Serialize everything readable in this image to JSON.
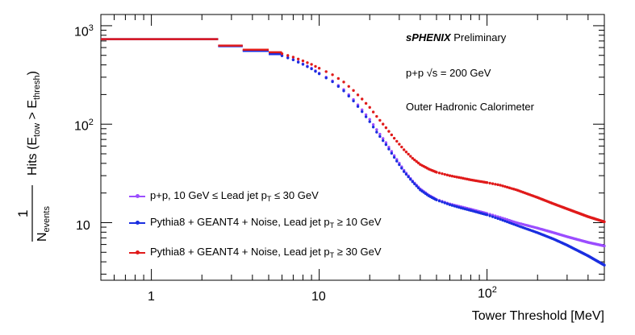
{
  "annotations": {
    "experiment_bold": "sPHENIX",
    "experiment_rest": "Preliminary",
    "system": "p+p  √s = 200 GeV",
    "detector": "Outer Hadronic Calorimeter"
  },
  "legend": [
    {
      "pre": "p+p, 10 GeV ≤ Lead jet p",
      "sub": "T",
      "post": " ≤ 30 GeV",
      "color": "#9b4dff"
    },
    {
      "pre": "Pythia8 + GEANT4 + Noise, Lead jet p",
      "sub": "T",
      "post": " ≥ 10 GeV",
      "color": "#1a2ee0"
    },
    {
      "pre": "Pythia8 + GEANT4 + Noise, Lead jet p",
      "sub": "T",
      "post": " ≥ 30 GeV",
      "color": "#e01a1a"
    }
  ],
  "chart_data": {
    "type": "scatter",
    "xlabel": "Tower Threshold [MeV]",
    "ylabel": "1/N_events Hits (E_tow > E_thresh)",
    "xscale": "log",
    "yscale": "log",
    "xlim": [
      0.5,
      500
    ],
    "ylim": [
      2.6,
      1300
    ],
    "x_tick_labels": [
      "1",
      "10",
      "10²"
    ],
    "y_tick_labels": [
      "10",
      "10²",
      "10³"
    ],
    "series": [
      {
        "name": "p+p, 10 GeV ≤ Lead jet pT ≤ 30 GeV",
        "color": "#9b4dff",
        "points": [
          [
            0.5,
            730
          ],
          [
            1,
            730
          ],
          [
            2,
            730
          ],
          [
            3,
            620
          ],
          [
            4,
            565
          ],
          [
            5,
            540
          ],
          [
            6,
            500
          ],
          [
            7,
            455
          ],
          [
            8,
            410
          ],
          [
            9,
            370
          ],
          [
            10,
            330
          ],
          [
            12,
            275
          ],
          [
            14,
            225
          ],
          [
            16,
            178
          ],
          [
            18,
            140
          ],
          [
            20,
            112
          ],
          [
            22,
            88
          ],
          [
            25,
            65
          ],
          [
            28,
            48
          ],
          [
            32,
            34
          ],
          [
            36,
            26.5
          ],
          [
            40,
            22
          ],
          [
            45,
            19
          ],
          [
            50,
            17.2
          ],
          [
            60,
            15.5
          ],
          [
            70,
            14.5
          ],
          [
            80,
            13.7
          ],
          [
            100,
            12.4
          ],
          [
            120,
            11.3
          ],
          [
            150,
            10
          ],
          [
            200,
            8.8
          ],
          [
            250,
            7.9
          ],
          [
            300,
            7.2
          ],
          [
            400,
            6.3
          ],
          [
            500,
            5.8
          ]
        ]
      },
      {
        "name": "Pythia8 + GEANT4 + Noise, Lead jet pT ≥ 10 GeV",
        "color": "#1a2ee0",
        "points": [
          [
            0.5,
            730
          ],
          [
            1,
            730
          ],
          [
            2,
            730
          ],
          [
            3,
            615
          ],
          [
            4,
            560
          ],
          [
            5,
            535
          ],
          [
            6,
            495
          ],
          [
            7,
            450
          ],
          [
            8,
            405
          ],
          [
            9,
            365
          ],
          [
            10,
            325
          ],
          [
            12,
            270
          ],
          [
            14,
            218
          ],
          [
            16,
            172
          ],
          [
            18,
            134
          ],
          [
            20,
            106
          ],
          [
            22,
            83
          ],
          [
            25,
            62
          ],
          [
            28,
            46
          ],
          [
            32,
            33
          ],
          [
            36,
            26
          ],
          [
            40,
            21.5
          ],
          [
            45,
            18.7
          ],
          [
            50,
            17
          ],
          [
            60,
            15.2
          ],
          [
            70,
            14.1
          ],
          [
            80,
            13.3
          ],
          [
            100,
            12
          ],
          [
            120,
            10.8
          ],
          [
            150,
            9.4
          ],
          [
            200,
            7.9
          ],
          [
            250,
            6.8
          ],
          [
            300,
            5.9
          ],
          [
            400,
            4.6
          ],
          [
            500,
            3.7
          ]
        ]
      },
      {
        "name": "Pythia8 + GEANT4 + Noise, Lead jet pT ≥ 30 GeV",
        "color": "#e01a1a",
        "points": [
          [
            0.5,
            730
          ],
          [
            1,
            730
          ],
          [
            2,
            730
          ],
          [
            3,
            625
          ],
          [
            4,
            575
          ],
          [
            5,
            555
          ],
          [
            6,
            520
          ],
          [
            7,
            480
          ],
          [
            8,
            440
          ],
          [
            9,
            405
          ],
          [
            10,
            370
          ],
          [
            12,
            318
          ],
          [
            14,
            268
          ],
          [
            16,
            220
          ],
          [
            18,
            180
          ],
          [
            20,
            148
          ],
          [
            22,
            120
          ],
          [
            25,
            92
          ],
          [
            28,
            72
          ],
          [
            32,
            55
          ],
          [
            36,
            45
          ],
          [
            40,
            39
          ],
          [
            45,
            35
          ],
          [
            50,
            32.5
          ],
          [
            60,
            30
          ],
          [
            70,
            28.5
          ],
          [
            80,
            27.2
          ],
          [
            100,
            25.5
          ],
          [
            120,
            24
          ],
          [
            150,
            21.5
          ],
          [
            200,
            18
          ],
          [
            250,
            15.5
          ],
          [
            300,
            13.8
          ],
          [
            400,
            11.5
          ],
          [
            500,
            10.2
          ]
        ]
      }
    ]
  }
}
